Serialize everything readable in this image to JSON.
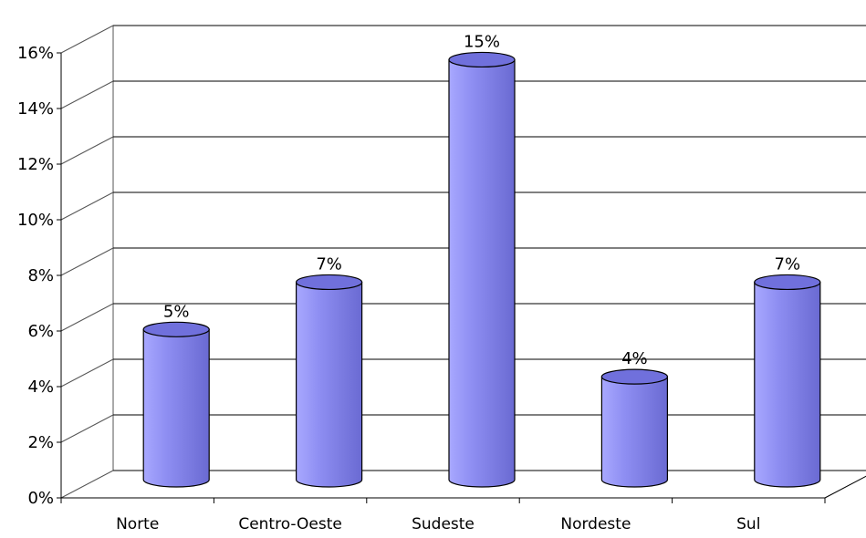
{
  "chart_data": {
    "type": "bar",
    "title": "",
    "xlabel": "",
    "ylabel": "",
    "categories": [
      "Norte",
      "Centro-Oeste",
      "Sudeste",
      "Nordeste",
      "Sul"
    ],
    "values": [
      0.054,
      0.071,
      0.151,
      0.037,
      0.071
    ],
    "data_labels": [
      "5%",
      "7%",
      "15%",
      "4%",
      "7%"
    ],
    "y_ticks": [
      0,
      0.02,
      0.04,
      0.06,
      0.08,
      0.1,
      0.12,
      0.14,
      0.16
    ],
    "y_tick_labels": [
      "0%",
      "2%",
      "4%",
      "6%",
      "8%",
      "10%",
      "12%",
      "14%",
      "16%"
    ],
    "ylim": [
      0,
      0.16
    ],
    "grid": true,
    "legend": "none",
    "bar_shape": "cylinder-3d",
    "colors": {
      "bar_body": "#8e8ef2",
      "bar_light": "#a8a8ff",
      "bar_dark": "#6a6ad2",
      "bar_top": "#7070dc",
      "gridline": "#000000",
      "text": "#000000"
    }
  }
}
